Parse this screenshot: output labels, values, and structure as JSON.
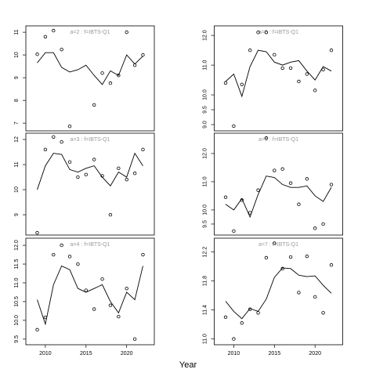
{
  "chart_data": [
    {
      "type": "scatter-line",
      "title": "a=2 : f=IBTS-Q1",
      "color": "#000000",
      "x": [
        2009,
        2010,
        2011,
        2012,
        2013,
        2014,
        2015,
        2016,
        2017,
        2018,
        2019,
        2020,
        2021,
        2022
      ],
      "series": [
        {
          "style": "points",
          "values": [
            10.03,
            10.8,
            11.07,
            10.24,
            6.86,
            null,
            null,
            7.8,
            9.2,
            8.76,
            9.1,
            11.0,
            9.55,
            10.0
          ]
        },
        {
          "style": "line",
          "values": [
            9.65,
            10.1,
            10.1,
            9.45,
            9.25,
            9.35,
            9.55,
            9.1,
            8.7,
            9.3,
            9.1,
            10.0,
            9.6,
            9.95
          ]
        }
      ],
      "xlim": [
        2007.6,
        2023.4
      ],
      "ylim": [
        6.66,
        11.28
      ],
      "yticks": [
        7,
        8,
        9,
        10,
        11
      ]
    },
    {
      "type": "scatter-line",
      "title": "a=5 : f=IBTS-Q1",
      "color": "#000000",
      "x": [
        2009,
        2010,
        2011,
        2012,
        2013,
        2014,
        2015,
        2016,
        2017,
        2018,
        2019,
        2020,
        2021,
        2022
      ],
      "series": [
        {
          "style": "points",
          "values": [
            10.4,
            8.95,
            10.35,
            11.5,
            12.1,
            12.1,
            11.35,
            10.9,
            10.9,
            10.45,
            10.7,
            10.15,
            10.85,
            11.5
          ]
        },
        {
          "style": "line",
          "values": [
            10.45,
            10.7,
            9.95,
            10.95,
            11.5,
            11.45,
            11.1,
            11.0,
            11.1,
            11.15,
            10.8,
            10.5,
            10.95,
            10.8
          ]
        }
      ],
      "xlim": [
        2007.6,
        2023.4
      ],
      "ylim": [
        8.79,
        12.32
      ],
      "yticks": [
        {
          "value": 9,
          "label": "9.0"
        },
        9.5,
        {
          "value": 10,
          "label": "10.0"
        },
        {
          "value": 11,
          "label": "11.0"
        },
        {
          "value": 12,
          "label": "12.0"
        }
      ]
    },
    {
      "type": "scatter-line",
      "title": "a=3 : f=IBTS-Q1",
      "color": "#000000",
      "x": [
        2009,
        2010,
        2011,
        2012,
        2013,
        2014,
        2015,
        2016,
        2017,
        2018,
        2019,
        2020,
        2021,
        2022
      ],
      "series": [
        {
          "style": "points",
          "values": [
            8.28,
            11.6,
            12.1,
            11.9,
            11.1,
            10.5,
            10.6,
            11.2,
            10.55,
            9.0,
            10.85,
            10.4,
            10.65,
            11.6
          ]
        },
        {
          "style": "line",
          "values": [
            10.0,
            10.95,
            11.45,
            11.4,
            10.8,
            10.7,
            10.85,
            10.95,
            10.5,
            10.15,
            10.7,
            10.5,
            11.45,
            10.95
          ]
        }
      ],
      "xlim": [
        2007.6,
        2023.4
      ],
      "ylim": [
        8.19,
        12.25
      ],
      "yticks": [
        9,
        10,
        11,
        12
      ]
    },
    {
      "type": "scatter-line",
      "title": "a=6 : f=IBTS-Q1",
      "color": "#000000",
      "x": [
        2009,
        2010,
        2011,
        2012,
        2013,
        2014,
        2015,
        2016,
        2017,
        2018,
        2019,
        2020,
        2021,
        2022
      ],
      "series": [
        {
          "style": "points",
          "values": [
            10.45,
            9.25,
            10.35,
            9.9,
            10.7,
            12.55,
            11.4,
            11.45,
            10.95,
            10.2,
            11.1,
            9.35,
            9.5,
            10.9
          ]
        },
        {
          "style": "line",
          "values": [
            10.2,
            10.0,
            10.4,
            9.75,
            10.55,
            11.2,
            11.15,
            10.9,
            10.8,
            10.8,
            10.85,
            10.5,
            10.3,
            10.8
          ]
        }
      ],
      "xlim": [
        2007.6,
        2023.4
      ],
      "ylim": [
        9.11,
        12.72
      ],
      "yticks": [
        9.5,
        {
          "value": 10,
          "label": "10.0"
        },
        {
          "value": 11,
          "label": "11.0"
        },
        {
          "value": 12,
          "label": "12.0"
        }
      ]
    },
    {
      "type": "scatter-line",
      "title": "a=4 : f=IBTS-Q1",
      "color": "#000000",
      "x": [
        2009,
        2010,
        2011,
        2012,
        2013,
        2014,
        2015,
        2016,
        2017,
        2018,
        2019,
        2020,
        2021,
        2022
      ],
      "series": [
        {
          "style": "points",
          "values": [
            9.75,
            10.08,
            11.75,
            12.0,
            11.7,
            11.5,
            10.8,
            10.3,
            11.1,
            10.4,
            10.1,
            10.85,
            9.5,
            11.75
          ]
        },
        {
          "style": "line",
          "values": [
            10.55,
            9.9,
            10.95,
            11.45,
            11.35,
            10.85,
            10.75,
            10.85,
            10.95,
            10.5,
            10.2,
            10.75,
            10.55,
            11.45
          ]
        }
      ],
      "xlim": [
        2007.6,
        2023.4
      ],
      "ylim": [
        9.35,
        12.19
      ],
      "yticks": [
        9.5,
        {
          "value": 10,
          "label": "10.0"
        },
        10.5,
        {
          "value": 11,
          "label": "11.0"
        },
        11.5,
        {
          "value": 12,
          "label": "12.0"
        }
      ],
      "xticks": [
        2010,
        2015,
        2020
      ]
    },
    {
      "type": "scatter-line",
      "title": "a=7 : f=IBTS-Q1",
      "color": "#000000",
      "x": [
        2009,
        2010,
        2011,
        2012,
        2013,
        2014,
        2015,
        2016,
        2017,
        2018,
        2019,
        2020,
        2021,
        2022
      ],
      "series": [
        {
          "style": "points",
          "values": [
            11.3,
            11.0,
            11.22,
            11.41,
            11.36,
            12.12,
            12.32,
            11.97,
            12.13,
            11.64,
            12.14,
            11.58,
            11.36,
            12.02
          ]
        },
        {
          "style": "line",
          "values": [
            11.52,
            11.38,
            11.28,
            11.42,
            11.38,
            11.55,
            11.85,
            11.98,
            11.97,
            11.88,
            11.86,
            11.87,
            11.74,
            11.63
          ]
        }
      ],
      "xlim": [
        2007.6,
        2023.4
      ],
      "ylim": [
        10.92,
        12.39
      ],
      "yticks": [
        {
          "value": 11,
          "label": "11.0"
        },
        11.4,
        11.8,
        12.2
      ],
      "xticks": [
        2010,
        2015,
        2020
      ]
    }
  ],
  "xlabel": "Year"
}
